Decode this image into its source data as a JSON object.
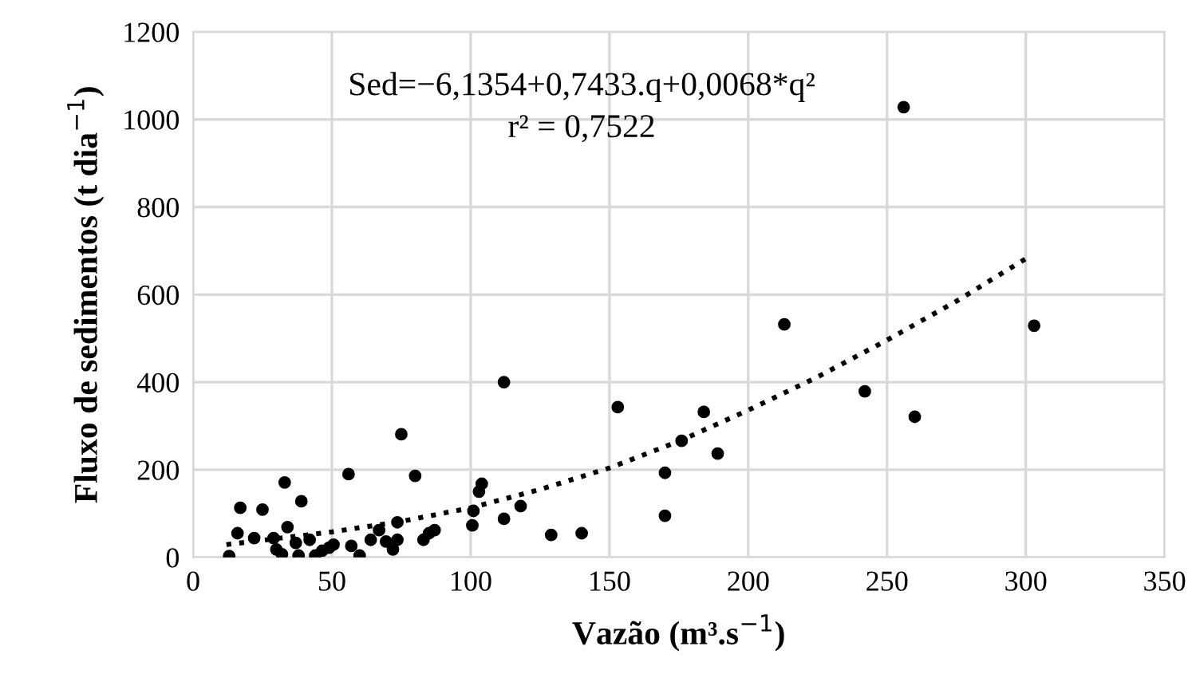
{
  "chart_data": {
    "type": "scatter",
    "xlabel": "Vazão (m³.s$^{−1}$)",
    "ylabel": "Fluxo de sedimentos (t dia$^{−1}$)",
    "annotations": [
      "Sed=−6,1354+0,7433.q+0,0068*q²",
      "r² = 0,7522"
    ],
    "xlim": [
      0,
      350
    ],
    "xticks": [
      0,
      50,
      100,
      150,
      200,
      250,
      300,
      350
    ],
    "ylim": [
      0,
      1200
    ],
    "yticks": [
      0,
      200,
      400,
      600,
      800,
      1000,
      1200
    ],
    "grid": true,
    "series": [
      {
        "marker": "circle",
        "color": "#000000",
        "x": [
          13,
          16,
          17,
          25,
          22,
          29,
          34,
          30,
          32,
          37,
          38,
          42,
          44,
          46.5,
          49,
          50.6,
          33,
          39,
          56,
          57,
          60,
          64,
          67,
          69.5,
          72,
          73.6,
          73.6,
          75,
          80,
          83,
          85,
          87,
          100.6,
          101,
          103,
          104,
          112,
          112,
          118,
          129,
          140,
          153,
          170,
          170,
          176,
          184,
          189,
          213,
          242,
          256,
          260,
          303
        ],
        "values": [
          3,
          55,
          113,
          109,
          44,
          44,
          69,
          18,
          7,
          33,
          4,
          40,
          4,
          15,
          22,
          29,
          171,
          128,
          190,
          26,
          4,
          40,
          62,
          36,
          18,
          40,
          80,
          281,
          186,
          40,
          55,
          62,
          73,
          106,
          150,
          168,
          88,
          400,
          117,
          51,
          55,
          343,
          193,
          95,
          266,
          332,
          237,
          532,
          379,
          1028,
          321,
          529
        ]
      },
      {
        "type": "line",
        "color": "#000000",
        "line_style": "dotted",
        "x": [
          12,
          50,
          75,
          100,
          125,
          150,
          175,
          200,
          225,
          250,
          275,
          300
        ],
        "values": [
          29,
          58,
          82,
          113,
          155,
          204,
          265,
          336,
          412,
          496,
          585,
          682
        ]
      }
    ]
  }
}
